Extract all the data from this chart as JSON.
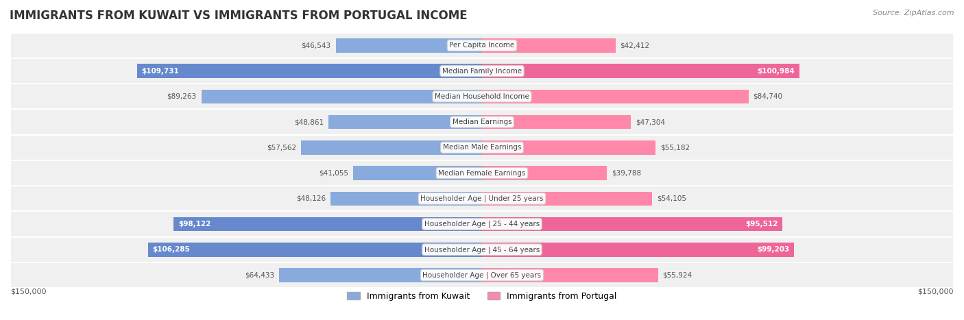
{
  "title": "IMMIGRANTS FROM KUWAIT VS IMMIGRANTS FROM PORTUGAL INCOME",
  "source": "Source: ZipAtlas.com",
  "categories": [
    "Per Capita Income",
    "Median Family Income",
    "Median Household Income",
    "Median Earnings",
    "Median Male Earnings",
    "Median Female Earnings",
    "Householder Age | Under 25 years",
    "Householder Age | 25 - 44 years",
    "Householder Age | 45 - 64 years",
    "Householder Age | Over 65 years"
  ],
  "kuwait_values": [
    46543,
    109731,
    89263,
    48861,
    57562,
    41055,
    48126,
    98122,
    106285,
    64433
  ],
  "portugal_values": [
    42412,
    100984,
    84740,
    47304,
    55182,
    39788,
    54105,
    95512,
    99203,
    55924
  ],
  "kuwait_labels": [
    "$46,543",
    "$109,731",
    "$89,263",
    "$48,861",
    "$57,562",
    "$41,055",
    "$48,126",
    "$98,122",
    "$106,285",
    "$64,433"
  ],
  "portugal_labels": [
    "$42,412",
    "$100,984",
    "$84,740",
    "$47,304",
    "$55,182",
    "$39,788",
    "$54,105",
    "$95,512",
    "$99,203",
    "$55,924"
  ],
  "kuwait_color": "#88aadd",
  "portugal_color": "#ff88aa",
  "kuwait_highlight": [
    false,
    true,
    false,
    false,
    false,
    false,
    false,
    true,
    true,
    false
  ],
  "portugal_highlight": [
    false,
    true,
    false,
    false,
    false,
    false,
    false,
    true,
    true,
    false
  ],
  "kuwait_color_highlight": "#6688cc",
  "portugal_color_highlight": "#ee6699",
  "max_val": 150000,
  "bar_height": 0.55,
  "row_bg_color": "#f0f0f0",
  "legend_kuwait": "Immigrants from Kuwait",
  "legend_portugal": "Immigrants from Portugal",
  "xlabel_left": "$150,000",
  "xlabel_right": "$150,000"
}
